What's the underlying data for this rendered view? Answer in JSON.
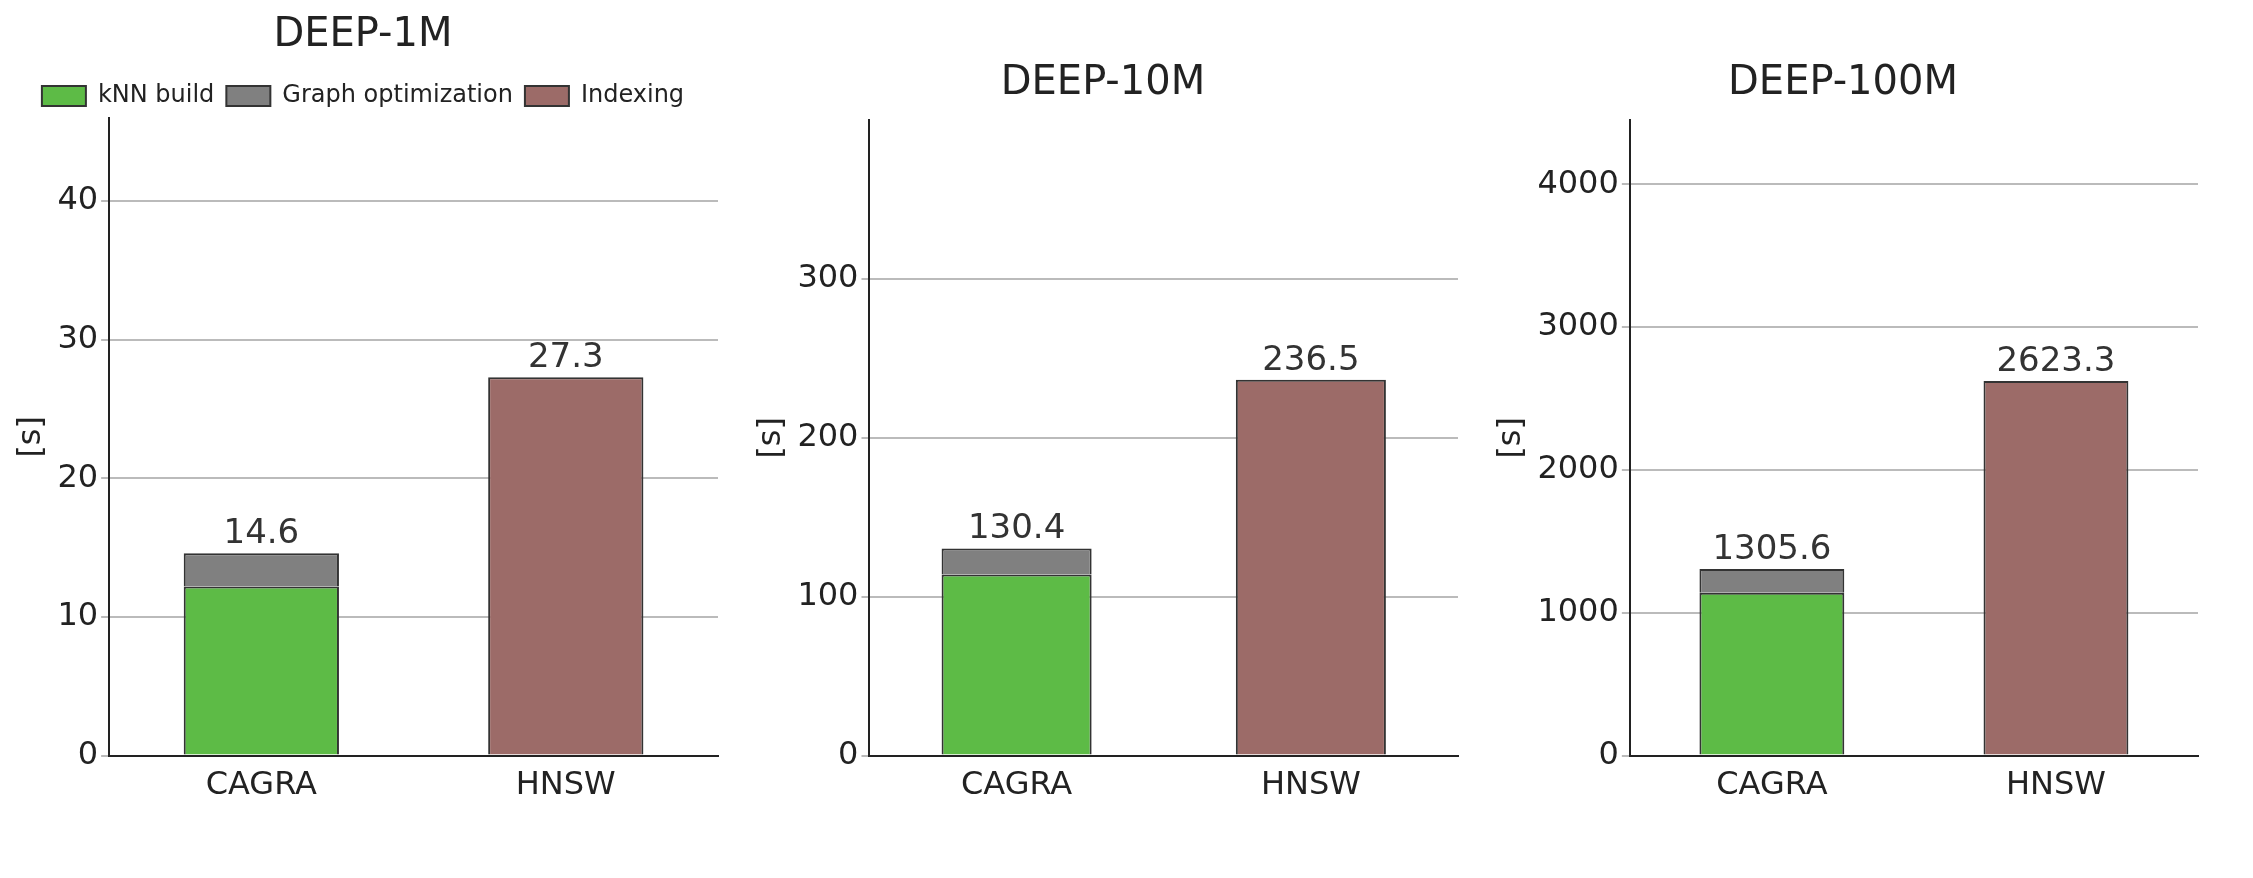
{
  "chart_data": [
    {
      "type": "bar",
      "title": "DEEP-1M",
      "ylabel": "[s]",
      "categories": [
        "CAGRA",
        "HNSW"
      ],
      "stacked": true,
      "ylim": [
        0,
        46
      ],
      "yticks": [
        0,
        10,
        20,
        30,
        40
      ],
      "grid": "y",
      "legend": "top",
      "totals": [
        "14.6",
        "27.3"
      ],
      "series": [
        {
          "name": "kNN build",
          "color": "#5dbb46",
          "values": [
            12.2,
            null
          ]
        },
        {
          "name": "Graph optimization",
          "color": "#808080",
          "values": [
            2.4,
            null
          ]
        },
        {
          "name": "Indexing",
          "color": "#9c6b68",
          "values": [
            null,
            27.3
          ]
        }
      ]
    },
    {
      "type": "bar",
      "title": "DEEP-10M",
      "ylabel": "[s]",
      "categories": [
        "CAGRA",
        "HNSW"
      ],
      "stacked": true,
      "ylim": [
        0,
        400
      ],
      "yticks": [
        0,
        100,
        200,
        300
      ],
      "grid": "y",
      "totals": [
        "130.4",
        "236.5"
      ],
      "series": [
        {
          "color": "#5dbb46",
          "values": [
            114,
            null
          ]
        },
        {
          "color": "#808080",
          "values": [
            16.4,
            null
          ]
        },
        {
          "color": "#9c6b68",
          "values": [
            null,
            236.5
          ]
        }
      ]
    },
    {
      "type": "bar",
      "title": "DEEP-100M",
      "ylabel": "[s]",
      "categories": [
        "CAGRA",
        "HNSW"
      ],
      "stacked": true,
      "ylim": [
        0,
        4450
      ],
      "yticks": [
        0,
        1000,
        2000,
        3000,
        4000
      ],
      "grid": "y",
      "totals": [
        "1305.6",
        "2623.3"
      ],
      "series": [
        {
          "color": "#5dbb46",
          "values": [
            1140,
            null
          ]
        },
        {
          "color": "#808080",
          "values": [
            165.6,
            null
          ]
        },
        {
          "color": "#9c6b68",
          "values": [
            null,
            2623.3
          ]
        }
      ]
    }
  ]
}
